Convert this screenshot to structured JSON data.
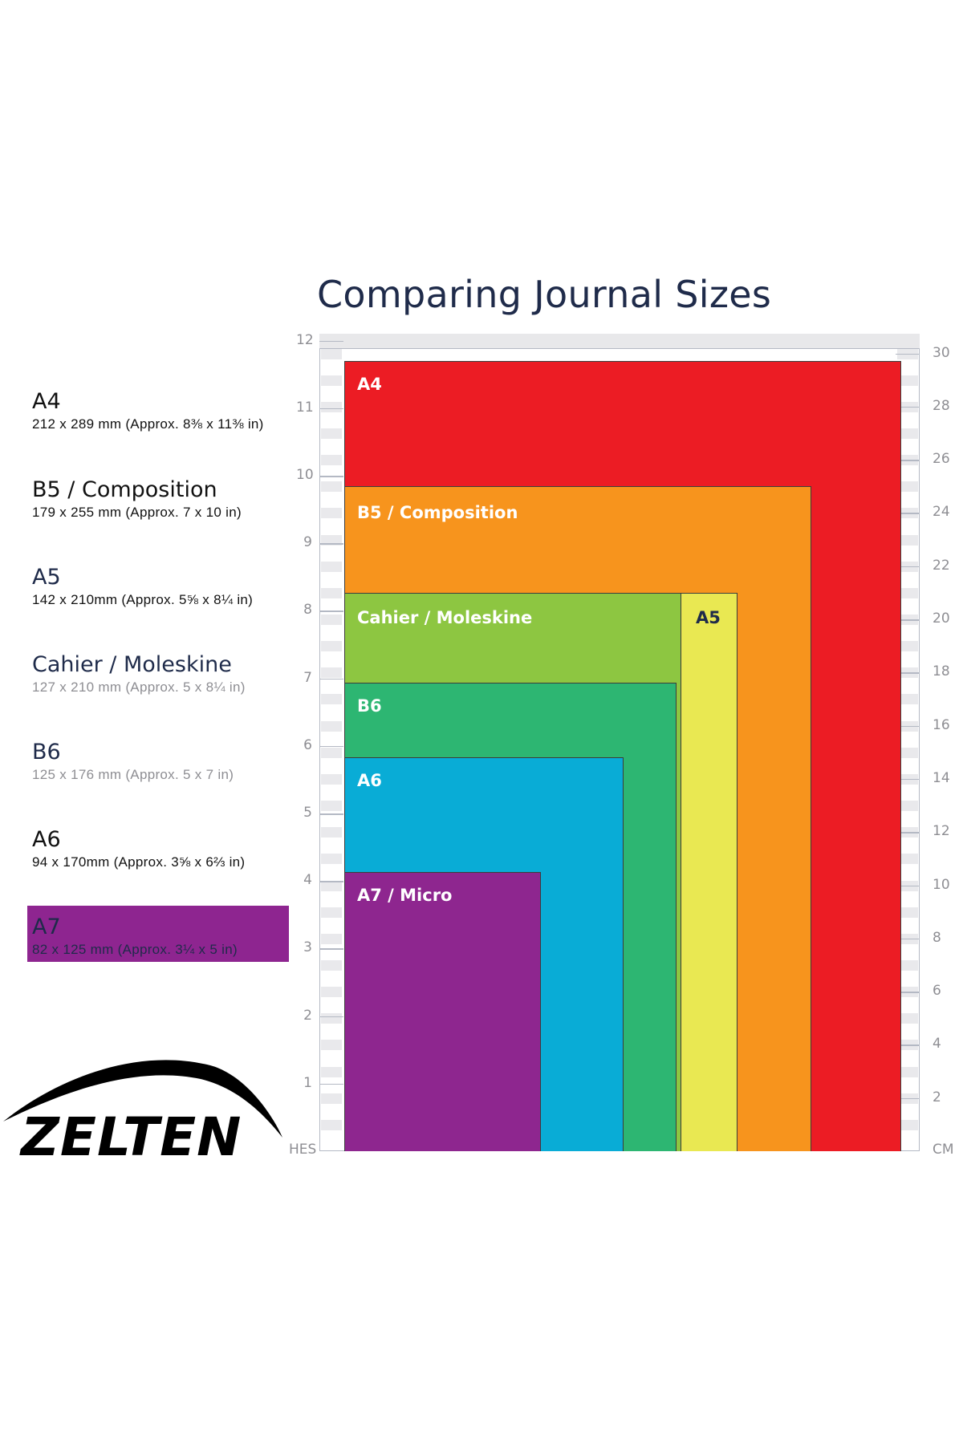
{
  "title": "Comparing Journal Sizes",
  "legend": [
    {
      "name": "A4",
      "desc": "212 x 289 mm (Approx. 8⅜ x 11⅜ in)",
      "name_color": "#111111",
      "desc_color": "#111111"
    },
    {
      "name": "B5 / Composition",
      "desc": "179 x 255 mm (Approx. 7 x 10 in)",
      "name_color": "#111111",
      "desc_color": "#111111"
    },
    {
      "name": "A5",
      "desc": "142 x 210mm (Approx. 5⅝ x 8¼ in)",
      "name_color": "#1f2b4a",
      "desc_color": "#111111"
    },
    {
      "name": "Cahier / Moleskine",
      "desc": "127 x 210 mm (Approx. 5 x 8¼ in)",
      "name_color": "#1f2b4a",
      "desc_color": "#8e8e93"
    },
    {
      "name": "B6",
      "desc": "125 x 176 mm (Approx. 5 x 7 in)",
      "name_color": "#1f2b4a",
      "desc_color": "#8e8e93"
    },
    {
      "name": "A6",
      "desc": "94 x 170mm (Approx. 3⅝ x 6⅔ in)",
      "name_color": "#111111",
      "desc_color": "#111111"
    },
    {
      "name": "A7",
      "desc": "82 x 125 mm (Approx. 3¼ x 5 in)",
      "name_color": "#1f2b4a",
      "desc_color": "#1f2b4a",
      "highlight": "#8e2590"
    }
  ],
  "rectangles": [
    {
      "label": "A4",
      "color": "#ec1c24",
      "height_in": 11.7
    },
    {
      "label": "B5 / Composition",
      "color": "#f7941d",
      "height_in": 9.84
    },
    {
      "label": "A5",
      "color": "#e9e852",
      "height_in": 8.27
    },
    {
      "label": "Cahier / Moleskine",
      "color": "#8dc641",
      "height_in": 8.27
    },
    {
      "label": "B6",
      "color": "#2db672",
      "height_in": 6.93
    },
    {
      "label": "A6",
      "color": "#09acd6",
      "height_in": 5.83
    },
    {
      "label": "A7 / Micro",
      "color": "#8e268f",
      "height_in": 4.13
    }
  ],
  "ruler": {
    "left_unit": "HES",
    "right_unit": "CM",
    "inch_ticks": [
      1,
      2,
      3,
      4,
      5,
      6,
      7,
      8,
      9,
      10,
      11,
      12
    ],
    "cm_ticks": [
      2,
      4,
      6,
      8,
      10,
      12,
      14,
      16,
      18,
      20,
      22,
      24,
      26,
      28,
      30
    ]
  },
  "logo": {
    "text": "ZELTEN"
  }
}
